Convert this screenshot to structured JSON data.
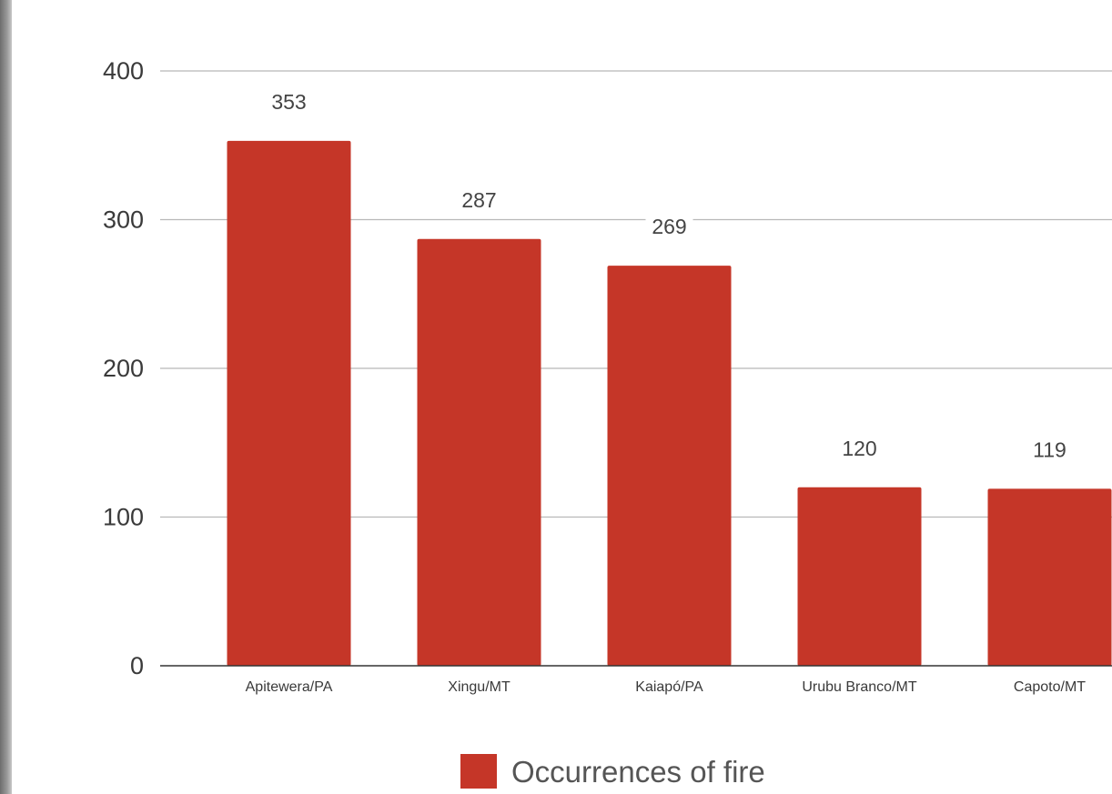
{
  "chart_data": {
    "type": "bar",
    "title": "",
    "xlabel": "",
    "ylabel": "",
    "categories": [
      "Apitewera/PA",
      "Xingu/MT",
      "Kaiapó/PA",
      "Urubu Branco/MT",
      "Capoto/MT"
    ],
    "series": [
      {
        "name": "Occurrences of fire",
        "values": [
          353,
          287,
          269,
          120,
          119
        ],
        "color": "#c53628"
      }
    ],
    "data_labels": [
      "353",
      "287",
      "269",
      "120",
      "119"
    ],
    "yticks": [
      0,
      100,
      200,
      300,
      400
    ],
    "ytick_labels": [
      "0",
      "100",
      "200",
      "300",
      "400"
    ],
    "ylim": [
      0,
      400
    ],
    "grid": true,
    "legend_position": "bottom",
    "colors": {
      "bar": "#c53628",
      "grid": "#b8b8b8",
      "axis": "#333333"
    }
  }
}
